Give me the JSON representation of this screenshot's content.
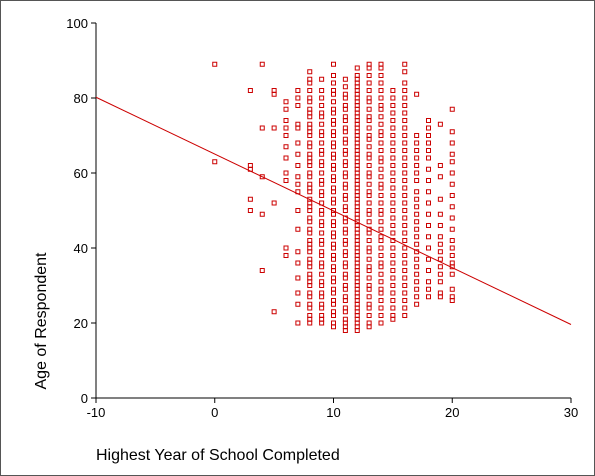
{
  "chart_data": {
    "type": "scatter",
    "title": "",
    "xlabel": "Highest Year of School Completed",
    "ylabel": "Age of Respondent",
    "xlim": [
      -10,
      30
    ],
    "ylim": [
      0,
      100
    ],
    "x_ticks": [
      "-10",
      "0",
      "10",
      "20",
      "30"
    ],
    "y_ticks": [
      "0",
      "20",
      "40",
      "60",
      "80",
      "100"
    ],
    "grid": false,
    "legend": "none",
    "marker": "open-square",
    "point_color": "#cc0000",
    "line_color": "#cc0000",
    "fit_line": {
      "x": [
        -10,
        30
      ],
      "y": [
        80.2,
        19.6
      ]
    },
    "columns": [
      {
        "x": 0,
        "y": [
          89,
          63
        ]
      },
      {
        "x": 3,
        "y": [
          82,
          62,
          61,
          53,
          50
        ]
      },
      {
        "x": 4,
        "y": [
          89,
          72,
          59,
          49,
          34
        ]
      },
      {
        "x": 5,
        "y": [
          82,
          81,
          72,
          52,
          23
        ]
      },
      {
        "x": 6,
        "y": [
          79,
          77,
          74,
          72,
          70,
          67,
          64,
          60,
          58,
          40,
          38
        ]
      },
      {
        "x": 7,
        "y": [
          82,
          80,
          78,
          73,
          72,
          68,
          65,
          62,
          59,
          57,
          55,
          50,
          45,
          39,
          36,
          32,
          28,
          25,
          20
        ]
      },
      {
        "x": 8,
        "y": [
          87,
          85,
          84,
          82,
          80,
          79,
          77,
          76,
          75,
          73,
          72,
          71,
          70,
          68,
          67,
          65,
          64,
          63,
          62,
          60,
          59,
          57,
          56,
          55,
          53,
          52,
          51,
          50,
          48,
          47,
          45,
          44,
          42,
          41,
          40,
          39,
          37,
          36,
          35,
          33,
          32,
          31,
          30,
          28,
          27,
          25,
          24,
          22,
          21,
          20
        ]
      },
      {
        "x": 9,
        "y": [
          85,
          82,
          80,
          78,
          76,
          75,
          73,
          71,
          70,
          68,
          66,
          65,
          63,
          62,
          60,
          58,
          57,
          55,
          54,
          52,
          50,
          49,
          47,
          46,
          44,
          42,
          41,
          39,
          38,
          36,
          35,
          33,
          31,
          30,
          28,
          27,
          25,
          24,
          22,
          21,
          20
        ]
      },
      {
        "x": 10,
        "y": [
          89,
          86,
          84,
          82,
          81,
          79,
          77,
          76,
          74,
          73,
          71,
          70,
          68,
          67,
          65,
          64,
          62,
          61,
          59,
          58,
          56,
          55,
          53,
          52,
          50,
          49,
          47,
          46,
          44,
          43,
          41,
          40,
          38,
          37,
          35,
          34,
          32,
          31,
          29,
          28,
          26,
          25,
          23,
          22,
          20,
          19
        ]
      },
      {
        "x": 11,
        "y": [
          85,
          83,
          81,
          80,
          78,
          77,
          75,
          74,
          72,
          71,
          69,
          68,
          66,
          65,
          63,
          62,
          60,
          59,
          57,
          56,
          54,
          53,
          51,
          50,
          48,
          47,
          45,
          44,
          42,
          41,
          39,
          38,
          36,
          35,
          33,
          32,
          30,
          29,
          27,
          26,
          24,
          23,
          21,
          20,
          19,
          18
        ]
      },
      {
        "x": 12,
        "y": [
          88,
          86,
          85,
          84,
          83,
          82,
          81,
          80,
          79,
          78,
          77,
          76,
          75,
          74,
          73,
          72,
          71,
          70,
          69,
          68,
          67,
          66,
          65,
          64,
          63,
          62,
          61,
          60,
          59,
          58,
          57,
          56,
          55,
          54,
          53,
          52,
          51,
          50,
          49,
          48,
          47,
          46,
          45,
          44,
          43,
          42,
          41,
          40,
          39,
          38,
          37,
          36,
          35,
          34,
          33,
          32,
          31,
          30,
          29,
          28,
          27,
          26,
          25,
          24,
          23,
          22,
          21,
          20,
          19,
          18
        ]
      },
      {
        "x": 13,
        "y": [
          89,
          88,
          86,
          84,
          82,
          80,
          79,
          77,
          75,
          74,
          72,
          70,
          69,
          67,
          65,
          64,
          62,
          60,
          59,
          57,
          55,
          54,
          52,
          50,
          49,
          47,
          45,
          44,
          42,
          40,
          39,
          37,
          35,
          34,
          32,
          30,
          29,
          27,
          25,
          24,
          22,
          20,
          19
        ]
      },
      {
        "x": 14,
        "y": [
          89,
          88,
          86,
          84,
          82,
          80,
          78,
          77,
          75,
          73,
          71,
          70,
          68,
          66,
          64,
          63,
          61,
          59,
          57,
          56,
          54,
          52,
          50,
          49,
          47,
          45,
          43,
          42,
          40,
          38,
          36,
          35,
          33,
          31,
          29,
          28,
          26,
          24,
          22,
          20
        ]
      },
      {
        "x": 15,
        "y": [
          82,
          80,
          78,
          76,
          74,
          72,
          70,
          68,
          66,
          64,
          62,
          60,
          58,
          56,
          54,
          52,
          50,
          48,
          46,
          44,
          42,
          40,
          38,
          36,
          34,
          32,
          30,
          28,
          26,
          24,
          22,
          21
        ]
      },
      {
        "x": 16,
        "y": [
          89,
          87,
          84,
          82,
          80,
          78,
          76,
          74,
          72,
          70,
          68,
          66,
          64,
          62,
          60,
          58,
          56,
          54,
          52,
          50,
          48,
          46,
          44,
          42,
          40,
          38,
          36,
          34,
          32,
          30,
          28,
          26,
          24,
          22
        ]
      },
      {
        "x": 17,
        "y": [
          81,
          70,
          68,
          66,
          64,
          62,
          60,
          58,
          55,
          53,
          51,
          49,
          47,
          45,
          43,
          41,
          39,
          37,
          35,
          33,
          31,
          29,
          27,
          25
        ]
      },
      {
        "x": 18,
        "y": [
          74,
          72,
          70,
          68,
          66,
          64,
          61,
          58,
          55,
          52,
          49,
          46,
          43,
          40,
          37,
          34,
          31,
          29,
          27
        ]
      },
      {
        "x": 19,
        "y": [
          73,
          62,
          59,
          53,
          49,
          46,
          43,
          41,
          39,
          37,
          35,
          33,
          31,
          28,
          27
        ]
      },
      {
        "x": 20,
        "y": [
          77,
          71,
          68,
          65,
          63,
          60,
          57,
          54,
          51,
          48,
          45,
          42,
          40,
          38,
          36,
          35,
          33,
          29,
          27,
          26
        ]
      }
    ]
  }
}
